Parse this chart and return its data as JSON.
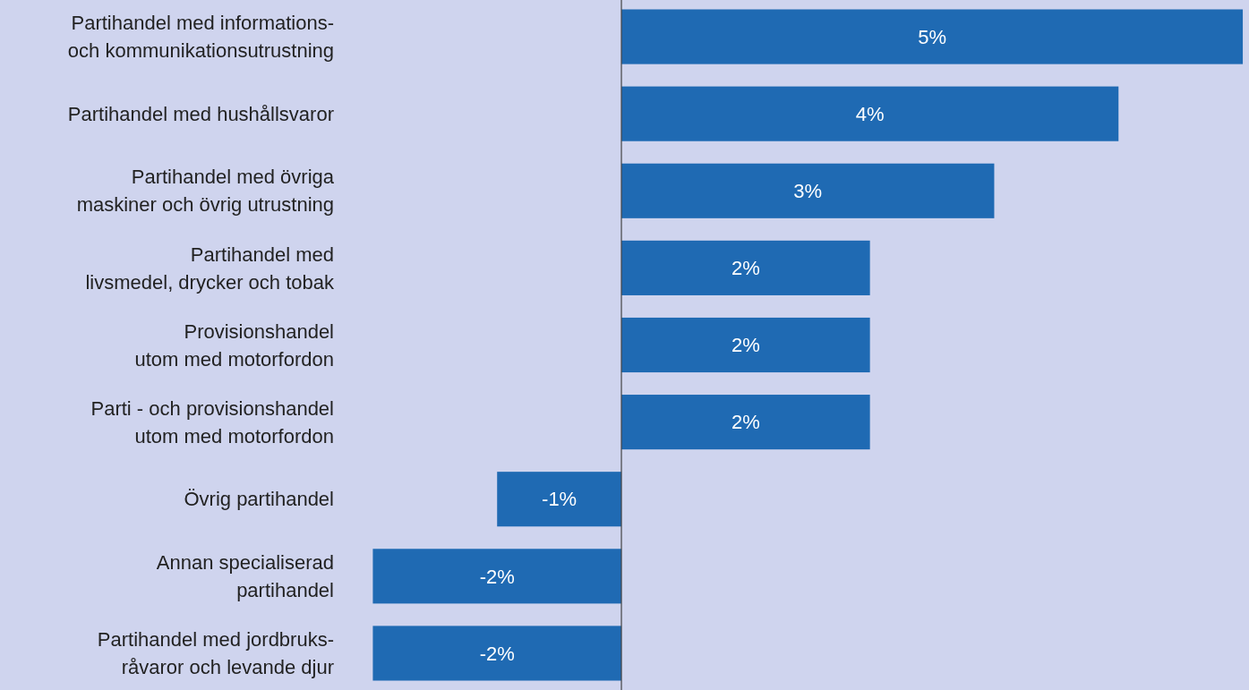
{
  "chart_data": {
    "type": "bar",
    "orientation": "horizontal",
    "categories": [
      "Partihandel med informations-\noch kommunikationsutrustning",
      "Partihandel med hushållsvaror",
      "Partihandel med övriga\nmaskiner och övrig utrustning",
      "Partihandel med\nlivsmedel, drycker och tobak",
      "Provisionshandel\nutom med motorfordon",
      "Parti - och provisionshandel\nutom med motorfordon",
      "Övrig partihandel",
      "Annan specialiserad\npartihandel",
      "Partihandel med jordbruks-\nråvaror och levande djur"
    ],
    "values": [
      5,
      4,
      3,
      2,
      2,
      2,
      -1,
      -2,
      -2
    ],
    "value_labels": [
      "5%",
      "4%",
      "3%",
      "2%",
      "2%",
      "2%",
      "-1%",
      "-2%",
      "-2%"
    ],
    "color": "#1f6ab3",
    "xlim": [
      -5,
      5.05
    ],
    "tick_labels": "y"
  }
}
